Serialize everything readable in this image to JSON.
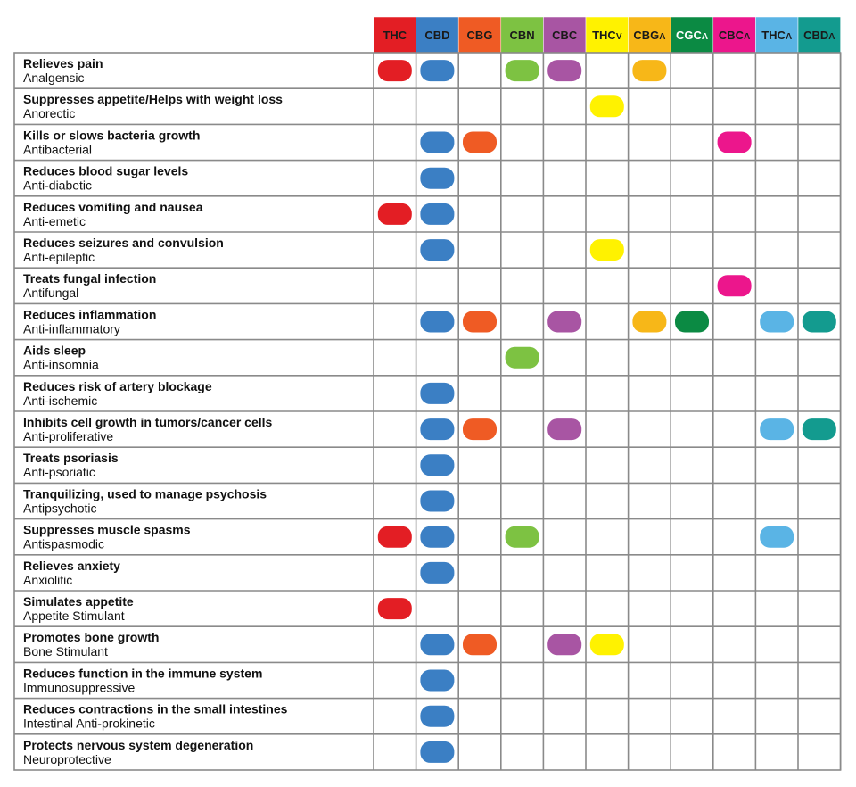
{
  "chart_data": {
    "type": "table",
    "columns": [
      {
        "label": "THC",
        "sub": "",
        "color": "#e31e24",
        "text_color": "#1a1a1a"
      },
      {
        "label": "CBD",
        "sub": "",
        "color": "#3b7fc4",
        "text_color": "#1a1a1a"
      },
      {
        "label": "CBG",
        "sub": "",
        "color": "#ef5b24",
        "text_color": "#1a1a1a"
      },
      {
        "label": "CBN",
        "sub": "",
        "color": "#7dc242",
        "text_color": "#1a1a1a"
      },
      {
        "label": "CBC",
        "sub": "",
        "color": "#a855a3",
        "text_color": "#1a1a1a"
      },
      {
        "label": "THC",
        "sub": "V",
        "color": "#fff200",
        "text_color": "#1a1a1a"
      },
      {
        "label": "CBG",
        "sub": "A",
        "color": "#f7b718",
        "text_color": "#1a1a1a"
      },
      {
        "label": "CGC",
        "sub": "A",
        "color": "#0b8a43",
        "text_color": "#ffffff"
      },
      {
        "label": "CBC",
        "sub": "A",
        "color": "#ec168c",
        "text_color": "#1a1a1a"
      },
      {
        "label": "THC",
        "sub": "A",
        "color": "#5ab4e5",
        "text_color": "#1a1a1a"
      },
      {
        "label": "CBD",
        "sub": "A",
        "color": "#139b8f",
        "text_color": "#1a1a1a"
      }
    ],
    "rows": [
      {
        "title": "Relieves pain",
        "sub": "Analgensic",
        "marks": [
          1,
          1,
          0,
          1,
          1,
          0,
          1,
          0,
          0,
          0,
          0
        ]
      },
      {
        "title": "Suppresses appetite/Helps with weight loss",
        "sub": "Anorectic",
        "marks": [
          0,
          0,
          0,
          0,
          0,
          1,
          0,
          0,
          0,
          0,
          0
        ]
      },
      {
        "title": "Kills or slows bacteria growth",
        "sub": "Antibacterial",
        "marks": [
          0,
          1,
          1,
          0,
          0,
          0,
          0,
          0,
          1,
          0,
          0
        ]
      },
      {
        "title": "Reduces blood sugar levels",
        "sub": "Anti-diabetic",
        "marks": [
          0,
          1,
          0,
          0,
          0,
          0,
          0,
          0,
          0,
          0,
          0
        ]
      },
      {
        "title": "Reduces vomiting and nausea",
        "sub": "Anti-emetic",
        "marks": [
          1,
          1,
          0,
          0,
          0,
          0,
          0,
          0,
          0,
          0,
          0
        ]
      },
      {
        "title": "Reduces seizures and convulsion",
        "sub": "Anti-epileptic",
        "marks": [
          0,
          1,
          0,
          0,
          0,
          1,
          0,
          0,
          0,
          0,
          0
        ]
      },
      {
        "title": "Treats fungal infection",
        "sub": "Antifungal",
        "marks": [
          0,
          0,
          0,
          0,
          0,
          0,
          0,
          0,
          1,
          0,
          0
        ]
      },
      {
        "title": "Reduces inflammation",
        "sub": "Anti-inflammatory",
        "marks": [
          0,
          1,
          1,
          0,
          1,
          0,
          1,
          1,
          0,
          1,
          1
        ]
      },
      {
        "title": "Aids sleep",
        "sub": "Anti-insomnia",
        "marks": [
          0,
          0,
          0,
          1,
          0,
          0,
          0,
          0,
          0,
          0,
          0
        ]
      },
      {
        "title": "Reduces risk of artery blockage",
        "sub": "Anti-ischemic",
        "marks": [
          0,
          1,
          0,
          0,
          0,
          0,
          0,
          0,
          0,
          0,
          0
        ]
      },
      {
        "title": "Inhibits cell growth in tumors/cancer cells",
        "sub": "Anti-proliferative",
        "marks": [
          0,
          1,
          1,
          0,
          1,
          0,
          0,
          0,
          0,
          1,
          1
        ]
      },
      {
        "title": "Treats psoriasis",
        "sub": "Anti-psoriatic",
        "marks": [
          0,
          1,
          0,
          0,
          0,
          0,
          0,
          0,
          0,
          0,
          0
        ]
      },
      {
        "title": "Tranquilizing, used to manage psychosis",
        "sub": "Antipsychotic",
        "marks": [
          0,
          1,
          0,
          0,
          0,
          0,
          0,
          0,
          0,
          0,
          0
        ]
      },
      {
        "title": "Suppresses muscle spasms",
        "sub": "Antispasmodic",
        "marks": [
          1,
          1,
          0,
          1,
          0,
          0,
          0,
          0,
          0,
          1,
          0
        ]
      },
      {
        "title": "Relieves anxiety",
        "sub": "Anxiolitic",
        "marks": [
          0,
          1,
          0,
          0,
          0,
          0,
          0,
          0,
          0,
          0,
          0
        ]
      },
      {
        "title": "Simulates appetite",
        "sub": "Appetite Stimulant",
        "marks": [
          1,
          0,
          0,
          0,
          0,
          0,
          0,
          0,
          0,
          0,
          0
        ]
      },
      {
        "title": "Promotes bone growth",
        "sub": "Bone Stimulant",
        "marks": [
          0,
          1,
          1,
          0,
          1,
          1,
          0,
          0,
          0,
          0,
          0
        ]
      },
      {
        "title": "Reduces function in the immune system",
        "sub": "Immunosuppressive",
        "marks": [
          0,
          1,
          0,
          0,
          0,
          0,
          0,
          0,
          0,
          0,
          0
        ]
      },
      {
        "title": "Reduces contractions in the small intestines",
        "sub": "Intestinal Anti-prokinetic",
        "marks": [
          0,
          1,
          0,
          0,
          0,
          0,
          0,
          0,
          0,
          0,
          0
        ]
      },
      {
        "title": "Protects nervous system degeneration",
        "sub": "Neuroprotective",
        "marks": [
          0,
          1,
          0,
          0,
          0,
          0,
          0,
          0,
          0,
          0,
          0
        ]
      }
    ],
    "grid_color": "#8a8a8a"
  }
}
